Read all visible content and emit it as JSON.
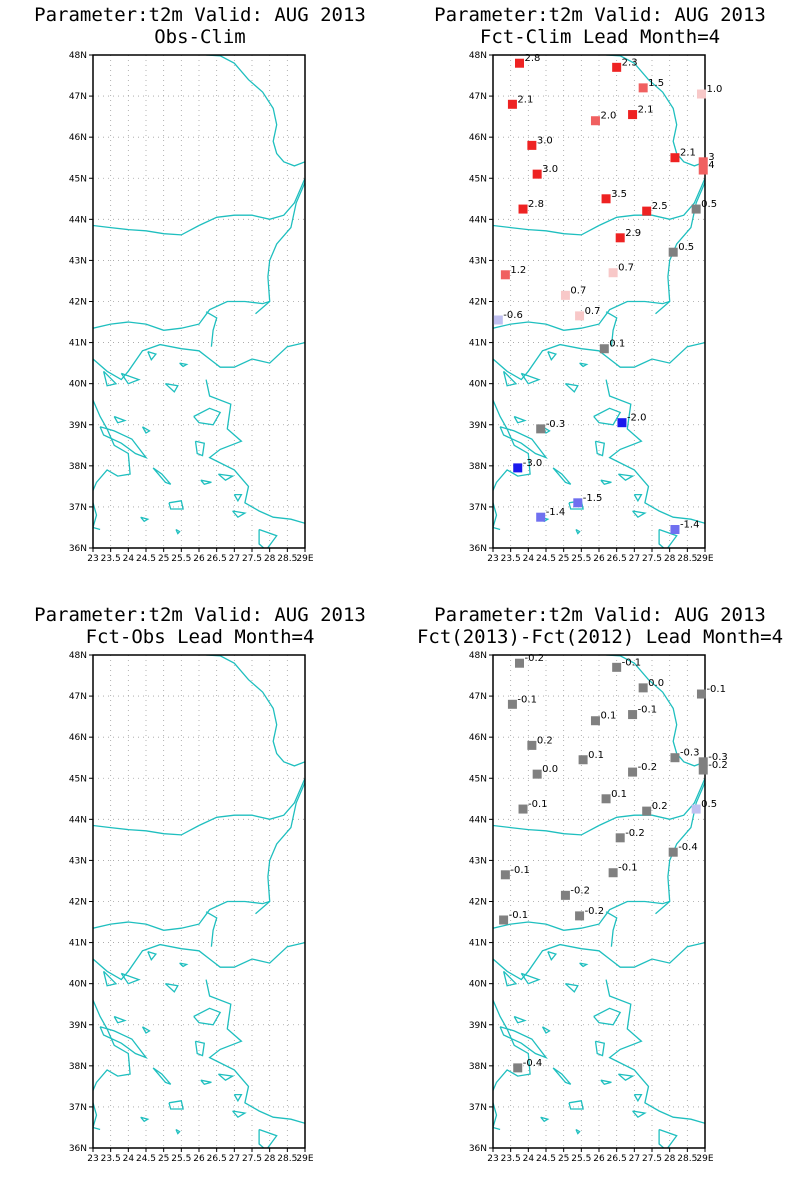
{
  "colors": {
    "coast": "#1fbfbf",
    "grid": "#a0a0a0",
    "frame": "#000000",
    "gray": "#808080",
    "red_strong": "#ee2222",
    "red_mid": "#f06060",
    "red_light": "#f5a0a0",
    "red_pale": "#f8c8c8",
    "blue_strong": "#1a1aee",
    "blue_mid": "#7070f0",
    "blue_pale": "#c0c0f0"
  },
  "axes": {
    "lat_labels": [
      "48N",
      "47N",
      "46N",
      "45N",
      "44N",
      "43N",
      "42N",
      "41N",
      "40N",
      "39N",
      "38N",
      "37N",
      "36N"
    ],
    "lon_labels": [
      "23",
      "23.5",
      "24",
      "24.5",
      "25",
      "25.5",
      "26",
      "26.5",
      "27",
      "27.5",
      "28",
      "28.5",
      "29E"
    ],
    "lat_range": [
      36,
      48
    ],
    "lon_range": [
      23,
      29
    ]
  },
  "panels": [
    {
      "id": "obs-clim",
      "title_line1": "Parameter:t2m Valid: AUG 2013",
      "title_line2": "Obs-Clim",
      "stations": []
    },
    {
      "id": "fct-clim",
      "title_line1": "Parameter:t2m Valid: AUG 2013",
      "title_line2": "Fct-Clim Lead Month=4",
      "stations": [
        {
          "lon": 23.75,
          "lat": 47.8,
          "label": "2.8",
          "color": "red_strong"
        },
        {
          "lon": 26.5,
          "lat": 47.7,
          "label": "2.3",
          "color": "red_strong"
        },
        {
          "lon": 27.25,
          "lat": 47.2,
          "label": "1.5",
          "color": "red_mid"
        },
        {
          "lon": 28.9,
          "lat": 47.05,
          "label": "1.0",
          "color": "red_pale"
        },
        {
          "lon": 23.55,
          "lat": 46.8,
          "label": "2.1",
          "color": "red_strong"
        },
        {
          "lon": 25.9,
          "lat": 46.4,
          "label": "2.0",
          "color": "red_mid"
        },
        {
          "lon": 26.95,
          "lat": 46.55,
          "label": "2.1",
          "color": "red_strong"
        },
        {
          "lon": 24.1,
          "lat": 45.8,
          "label": "3.0",
          "color": "red_strong"
        },
        {
          "lon": 28.15,
          "lat": 45.5,
          "label": "2.1",
          "color": "red_strong"
        },
        {
          "lon": 28.95,
          "lat": 45.4,
          "label": "3",
          "color": "red_mid"
        },
        {
          "lon": 28.95,
          "lat": 45.2,
          "label": "4",
          "color": "red_mid"
        },
        {
          "lon": 24.25,
          "lat": 45.1,
          "label": "3.0",
          "color": "red_strong"
        },
        {
          "lon": 26.2,
          "lat": 44.5,
          "label": "3.5",
          "color": "red_strong"
        },
        {
          "lon": 23.85,
          "lat": 44.25,
          "label": "2.8",
          "color": "red_strong"
        },
        {
          "lon": 27.35,
          "lat": 44.2,
          "label": "2.5",
          "color": "red_strong"
        },
        {
          "lon": 28.75,
          "lat": 44.25,
          "label": "0.5",
          "color": "gray"
        },
        {
          "lon": 26.6,
          "lat": 43.55,
          "label": "2.9",
          "color": "red_strong"
        },
        {
          "lon": 28.1,
          "lat": 43.2,
          "label": "0.5",
          "color": "gray"
        },
        {
          "lon": 23.35,
          "lat": 42.65,
          "label": "1.2",
          "color": "red_mid"
        },
        {
          "lon": 26.4,
          "lat": 42.7,
          "label": "0.7",
          "color": "red_pale"
        },
        {
          "lon": 25.05,
          "lat": 42.15,
          "label": "0.7",
          "color": "red_pale"
        },
        {
          "lon": 25.45,
          "lat": 41.65,
          "label": "0.7",
          "color": "red_pale"
        },
        {
          "lon": 23.15,
          "lat": 41.55,
          "label": "-0.6",
          "color": "blue_pale"
        },
        {
          "lon": 26.15,
          "lat": 40.85,
          "label": "0.1",
          "color": "gray"
        },
        {
          "lon": 26.65,
          "lat": 39.05,
          "label": "-2.0",
          "color": "blue_strong"
        },
        {
          "lon": 24.35,
          "lat": 38.9,
          "label": "-0.3",
          "color": "gray"
        },
        {
          "lon": 23.7,
          "lat": 37.95,
          "label": "-3.0",
          "color": "blue_strong"
        },
        {
          "lon": 25.4,
          "lat": 37.1,
          "label": "-1.5",
          "color": "blue_mid"
        },
        {
          "lon": 24.35,
          "lat": 36.75,
          "label": "-1.4",
          "color": "blue_mid"
        },
        {
          "lon": 28.15,
          "lat": 36.45,
          "label": "-1.4",
          "color": "blue_mid"
        }
      ]
    },
    {
      "id": "fct-obs",
      "title_line1": "Parameter:t2m Valid: AUG 2013",
      "title_line2": "Fct-Obs Lead Month=4",
      "stations": []
    },
    {
      "id": "fct-diff",
      "title_line1": "Parameter:t2m Valid: AUG 2013",
      "title_line2": "Fct(2013)-Fct(2012) Lead Month=4",
      "stations": [
        {
          "lon": 23.75,
          "lat": 47.8,
          "label": "-0.2",
          "color": "gray"
        },
        {
          "lon": 26.5,
          "lat": 47.7,
          "label": "-0.1",
          "color": "gray"
        },
        {
          "lon": 27.25,
          "lat": 47.2,
          "label": "0.0",
          "color": "gray"
        },
        {
          "lon": 28.9,
          "lat": 47.05,
          "label": "-0.1",
          "color": "gray"
        },
        {
          "lon": 23.55,
          "lat": 46.8,
          "label": "-0.1",
          "color": "gray"
        },
        {
          "lon": 25.9,
          "lat": 46.4,
          "label": "0.1",
          "color": "gray"
        },
        {
          "lon": 26.95,
          "lat": 46.55,
          "label": "-0.1",
          "color": "gray"
        },
        {
          "lon": 24.1,
          "lat": 45.8,
          "label": "0.2",
          "color": "gray"
        },
        {
          "lon": 25.55,
          "lat": 45.45,
          "label": "0.1",
          "color": "gray"
        },
        {
          "lon": 28.15,
          "lat": 45.5,
          "label": "-0.3",
          "color": "gray"
        },
        {
          "lon": 28.95,
          "lat": 45.4,
          "label": "-0.3",
          "color": "gray"
        },
        {
          "lon": 28.95,
          "lat": 45.2,
          "label": "-0.2",
          "color": "gray"
        },
        {
          "lon": 24.25,
          "lat": 45.1,
          "label": "0.0",
          "color": "gray"
        },
        {
          "lon": 26.95,
          "lat": 45.15,
          "label": "-0.2",
          "color": "gray"
        },
        {
          "lon": 26.2,
          "lat": 44.5,
          "label": "0.1",
          "color": "gray"
        },
        {
          "lon": 23.85,
          "lat": 44.25,
          "label": "-0.1",
          "color": "gray"
        },
        {
          "lon": 27.35,
          "lat": 44.2,
          "label": "0.2",
          "color": "gray"
        },
        {
          "lon": 28.75,
          "lat": 44.25,
          "label": "0.5",
          "color": "blue_pale"
        },
        {
          "lon": 26.6,
          "lat": 43.55,
          "label": "-0.2",
          "color": "gray"
        },
        {
          "lon": 28.1,
          "lat": 43.2,
          "label": "-0.4",
          "color": "gray"
        },
        {
          "lon": 23.35,
          "lat": 42.65,
          "label": "-0.1",
          "color": "gray"
        },
        {
          "lon": 26.4,
          "lat": 42.7,
          "label": "-0.1",
          "color": "gray"
        },
        {
          "lon": 25.05,
          "lat": 42.15,
          "label": "-0.2",
          "color": "gray"
        },
        {
          "lon": 25.45,
          "lat": 41.65,
          "label": "-0.2",
          "color": "gray"
        },
        {
          "lon": 23.3,
          "lat": 41.55,
          "label": "-0.1",
          "color": "gray"
        },
        {
          "lon": 23.7,
          "lat": 37.95,
          "label": "-0.4",
          "color": "gray"
        }
      ]
    }
  ]
}
